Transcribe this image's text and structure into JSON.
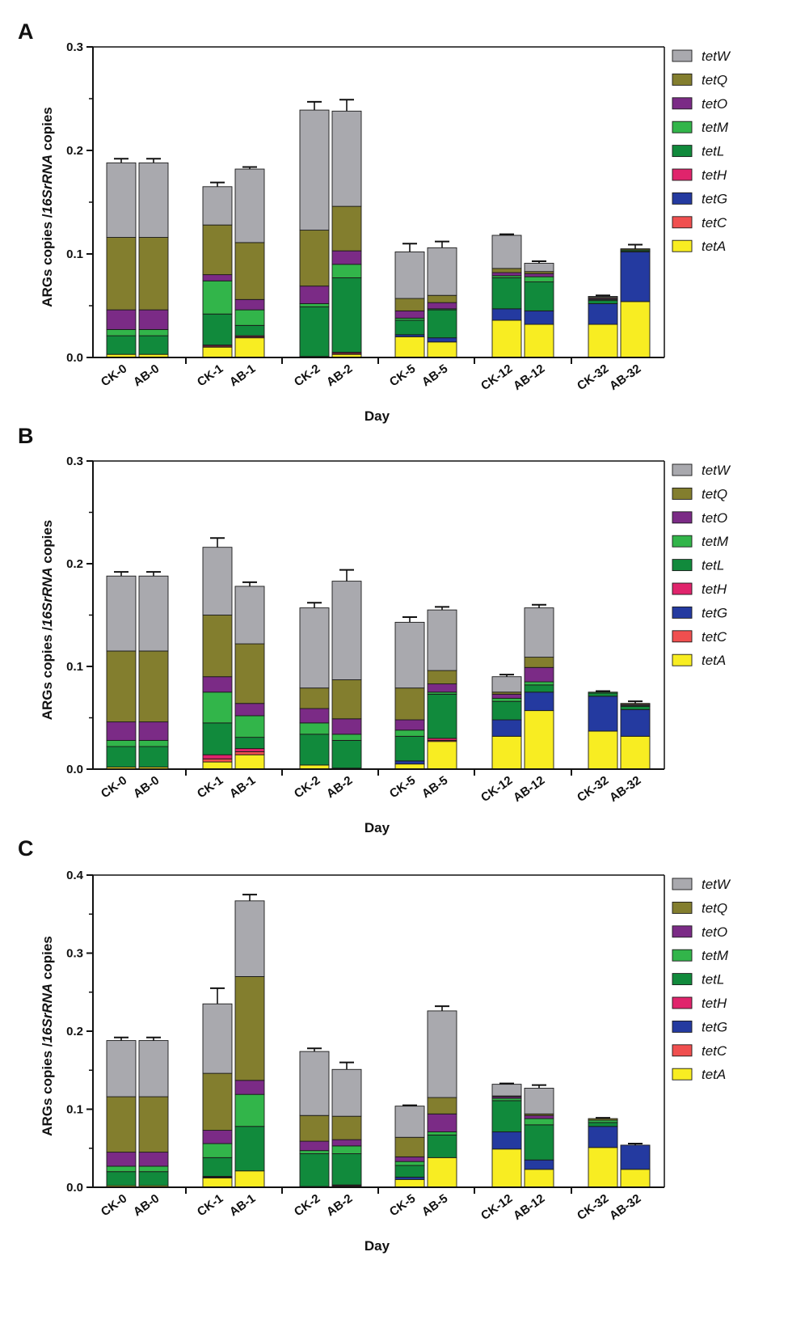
{
  "figure": {
    "series_order": [
      "tetA",
      "tetC",
      "tetG",
      "tetH",
      "tetL",
      "tetM",
      "tetO",
      "tetQ",
      "tetW"
    ],
    "legend_order": [
      "tetW",
      "tetQ",
      "tetO",
      "tetM",
      "tetL",
      "tetH",
      "tetG",
      "tetC",
      "tetA"
    ],
    "colors": {
      "tetW": "#a9a9ae",
      "tetQ": "#837e2e",
      "tetO": "#7b2b86",
      "tetM": "#32b54a",
      "tetL": "#118a3c",
      "tetH": "#e0246c",
      "tetG": "#243aa0",
      "tetC": "#f04f4f",
      "tetA": "#f8ed22"
    }
  },
  "chart_data": [
    {
      "panel": "A",
      "type": "bar",
      "stacked": true,
      "xlabel": "Day",
      "ylabel_parts": [
        "ARGs copies /",
        "16SrRNA",
        " copies"
      ],
      "ylim": [
        0,
        0.3
      ],
      "yticks": [
        "0.0",
        "0.1",
        "0.2",
        "0.3"
      ],
      "categories": [
        "CK-0",
        "AB-0",
        "CK-1",
        "AB-1",
        "CK-2",
        "AB-2",
        "CK-5",
        "AB-5",
        "CK-12",
        "AB-12",
        "CK-32",
        "AB-32"
      ],
      "groups": [
        [
          "CK-0",
          "AB-0"
        ],
        [
          "CK-1",
          "AB-1"
        ],
        [
          "CK-2",
          "AB-2"
        ],
        [
          "CK-5",
          "AB-5"
        ],
        [
          "CK-12",
          "AB-12"
        ],
        [
          "CK-32",
          "AB-32"
        ]
      ],
      "series": [
        {
          "name": "tetA",
          "values": [
            0.003,
            0.003,
            0.01,
            0.019,
            0.001,
            0.003,
            0.02,
            0.015,
            0.036,
            0.032,
            0.032,
            0.054
          ]
        },
        {
          "name": "tetC",
          "values": [
            0.0,
            0.0,
            0.001,
            0.001,
            0.0,
            0.001,
            0.0,
            0.0,
            0.0,
            0.0,
            0.0,
            0.0
          ]
        },
        {
          "name": "tetG",
          "values": [
            0.0,
            0.0,
            0.0,
            0.0,
            0.0,
            0.0,
            0.002,
            0.004,
            0.011,
            0.013,
            0.02,
            0.048
          ]
        },
        {
          "name": "tetH",
          "values": [
            0.0,
            0.0,
            0.001,
            0.001,
            0.0,
            0.001,
            0.0,
            0.0,
            0.0,
            0.0,
            0.0,
            0.0
          ]
        },
        {
          "name": "tetL",
          "values": [
            0.018,
            0.018,
            0.03,
            0.01,
            0.048,
            0.072,
            0.014,
            0.027,
            0.03,
            0.028,
            0.003,
            0.001
          ]
        },
        {
          "name": "tetM",
          "values": [
            0.006,
            0.006,
            0.032,
            0.015,
            0.003,
            0.013,
            0.002,
            0.001,
            0.002,
            0.005,
            0.001,
            0.001
          ]
        },
        {
          "name": "tetO",
          "values": [
            0.019,
            0.019,
            0.006,
            0.01,
            0.017,
            0.013,
            0.007,
            0.006,
            0.003,
            0.003,
            0.001,
            0.0
          ]
        },
        {
          "name": "tetQ",
          "values": [
            0.07,
            0.07,
            0.048,
            0.055,
            0.054,
            0.043,
            0.012,
            0.007,
            0.004,
            0.002,
            0.001,
            0.001
          ]
        },
        {
          "name": "tetW",
          "values": [
            0.072,
            0.072,
            0.037,
            0.071,
            0.116,
            0.092,
            0.045,
            0.046,
            0.032,
            0.008,
            0.001,
            0.0
          ]
        }
      ],
      "errors": [
        0.004,
        0.004,
        0.004,
        0.002,
        0.008,
        0.011,
        0.008,
        0.006,
        0.001,
        0.002,
        0.001,
        0.004
      ]
    },
    {
      "panel": "B",
      "type": "bar",
      "stacked": true,
      "xlabel": "Day",
      "ylabel_parts": [
        "ARGs copies /",
        "16SrRNA",
        " copies"
      ],
      "ylim": [
        0,
        0.3
      ],
      "yticks": [
        "0.0",
        "0.1",
        "0.2",
        "0.3"
      ],
      "categories": [
        "CK-0",
        "AB-0",
        "CK-1",
        "AB-1",
        "CK-2",
        "AB-2",
        "CK-5",
        "AB-5",
        "CK-12",
        "AB-12",
        "CK-32",
        "AB-32"
      ],
      "groups": [
        [
          "CK-0",
          "AB-0"
        ],
        [
          "CK-1",
          "AB-1"
        ],
        [
          "CK-2",
          "AB-2"
        ],
        [
          "CK-5",
          "AB-5"
        ],
        [
          "CK-12",
          "AB-12"
        ],
        [
          "CK-32",
          "AB-32"
        ]
      ],
      "series": [
        {
          "name": "tetA",
          "values": [
            0.002,
            0.002,
            0.007,
            0.014,
            0.004,
            0.001,
            0.005,
            0.027,
            0.032,
            0.057,
            0.037,
            0.032
          ]
        },
        {
          "name": "tetC",
          "values": [
            0.0,
            0.0,
            0.003,
            0.003,
            0.0,
            0.0,
            0.0,
            0.001,
            0.0,
            0.0,
            0.0,
            0.0
          ]
        },
        {
          "name": "tetG",
          "values": [
            0.0,
            0.0,
            0.0,
            0.0,
            0.0,
            0.0,
            0.003,
            0.0,
            0.016,
            0.018,
            0.034,
            0.026
          ]
        },
        {
          "name": "tetH",
          "values": [
            0.0,
            0.0,
            0.004,
            0.003,
            0.0,
            0.0,
            0.0,
            0.002,
            0.0,
            0.0,
            0.0,
            0.0
          ]
        },
        {
          "name": "tetL",
          "values": [
            0.02,
            0.02,
            0.031,
            0.011,
            0.03,
            0.027,
            0.024,
            0.043,
            0.018,
            0.007,
            0.003,
            0.003
          ]
        },
        {
          "name": "tetM",
          "values": [
            0.006,
            0.006,
            0.03,
            0.021,
            0.011,
            0.006,
            0.006,
            0.002,
            0.003,
            0.003,
            0.001,
            0.001
          ]
        },
        {
          "name": "tetO",
          "values": [
            0.018,
            0.018,
            0.015,
            0.012,
            0.014,
            0.015,
            0.01,
            0.008,
            0.004,
            0.014,
            0.0,
            0.001
          ]
        },
        {
          "name": "tetQ",
          "values": [
            0.069,
            0.069,
            0.06,
            0.058,
            0.02,
            0.038,
            0.031,
            0.013,
            0.002,
            0.01,
            0.0,
            0.001
          ]
        },
        {
          "name": "tetW",
          "values": [
            0.073,
            0.073,
            0.066,
            0.056,
            0.078,
            0.096,
            0.064,
            0.059,
            0.015,
            0.048,
            0.0,
            0.0
          ]
        }
      ],
      "errors": [
        0.004,
        0.004,
        0.009,
        0.004,
        0.005,
        0.011,
        0.005,
        0.003,
        0.002,
        0.003,
        0.001,
        0.002
      ]
    },
    {
      "panel": "C",
      "type": "bar",
      "stacked": true,
      "xlabel": "Day",
      "ylabel_parts": [
        "ARGs copies /",
        "16SrRNA",
        " copies"
      ],
      "ylim": [
        0,
        0.4
      ],
      "yticks": [
        "0.0",
        "0.1",
        "0.2",
        "0.3",
        "0.4"
      ],
      "categories": [
        "CK-0",
        "AB-0",
        "CK-1",
        "AB-1",
        "CK-2",
        "AB-2",
        "CK-5",
        "AB-5",
        "CK-12",
        "AB-12",
        "CK-32",
        "AB-32"
      ],
      "groups": [
        [
          "CK-0",
          "AB-0"
        ],
        [
          "CK-1",
          "AB-1"
        ],
        [
          "CK-2",
          "AB-2"
        ],
        [
          "CK-5",
          "AB-5"
        ],
        [
          "CK-12",
          "AB-12"
        ],
        [
          "CK-32",
          "AB-32"
        ]
      ],
      "series": [
        {
          "name": "tetA",
          "values": [
            0.002,
            0.002,
            0.012,
            0.021,
            0.001,
            0.001,
            0.01,
            0.038,
            0.049,
            0.023,
            0.051,
            0.023
          ]
        },
        {
          "name": "tetC",
          "values": [
            0.0,
            0.0,
            0.001,
            0.0,
            0.0,
            0.001,
            0.0,
            0.0,
            0.0,
            0.0,
            0.0,
            0.0
          ]
        },
        {
          "name": "tetG",
          "values": [
            0.0,
            0.0,
            0.0,
            0.0,
            0.0,
            0.0,
            0.003,
            0.0,
            0.022,
            0.012,
            0.027,
            0.031
          ]
        },
        {
          "name": "tetH",
          "values": [
            0.0,
            0.0,
            0.001,
            0.0,
            0.0,
            0.001,
            0.0,
            0.0,
            0.0,
            0.0,
            0.0,
            0.0
          ]
        },
        {
          "name": "tetL",
          "values": [
            0.018,
            0.018,
            0.024,
            0.057,
            0.042,
            0.04,
            0.015,
            0.029,
            0.04,
            0.045,
            0.005,
            0.0
          ]
        },
        {
          "name": "tetM",
          "values": [
            0.007,
            0.007,
            0.018,
            0.041,
            0.004,
            0.01,
            0.005,
            0.004,
            0.003,
            0.008,
            0.003,
            0.0
          ]
        },
        {
          "name": "tetO",
          "values": [
            0.018,
            0.018,
            0.017,
            0.018,
            0.012,
            0.008,
            0.006,
            0.023,
            0.002,
            0.004,
            0.0,
            0.0
          ]
        },
        {
          "name": "tetQ",
          "values": [
            0.071,
            0.071,
            0.073,
            0.133,
            0.033,
            0.03,
            0.025,
            0.021,
            0.001,
            0.002,
            0.002,
            0.0
          ]
        },
        {
          "name": "tetW",
          "values": [
            0.072,
            0.072,
            0.089,
            0.097,
            0.082,
            0.06,
            0.04,
            0.111,
            0.015,
            0.033,
            0.0,
            0.0
          ]
        }
      ],
      "errors": [
        0.004,
        0.004,
        0.02,
        0.008,
        0.004,
        0.009,
        0.001,
        0.006,
        0.001,
        0.004,
        0.001,
        0.002
      ]
    }
  ]
}
